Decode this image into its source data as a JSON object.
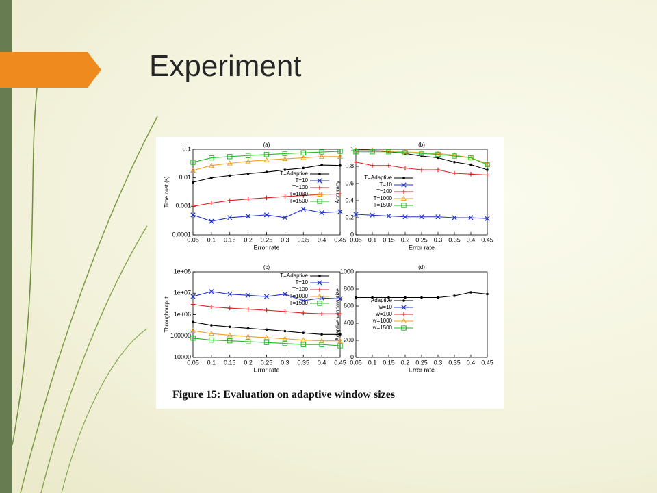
{
  "title": "Experiment",
  "caption": "Figure 15: Evaluation on adaptive window sizes",
  "chart_data": [
    {
      "type": "line",
      "title": "(a)",
      "x_label": "Error rate",
      "y_label": "Time cost (s)",
      "log_y": true,
      "legend": "right",
      "x": [
        0.05,
        0.1,
        0.15,
        0.2,
        0.25,
        0.3,
        0.35,
        0.4,
        0.45
      ],
      "xlim": [
        0.05,
        0.45
      ],
      "xticks": [
        0.05,
        0.1,
        0.15,
        0.2,
        0.25,
        0.3,
        0.35,
        0.4,
        0.45
      ],
      "ylim": [
        0.0001,
        0.1
      ],
      "yticks": [
        0.0001,
        0.001,
        0.01,
        0.1
      ],
      "series": [
        {
          "name": "T=Adaptive",
          "color": "#000000",
          "marker": "dot",
          "values": [
            0.007,
            0.01,
            0.012,
            0.014,
            0.016,
            0.019,
            0.022,
            0.028,
            0.027
          ]
        },
        {
          "name": "T=10",
          "color": "#2233cc",
          "marker": "x",
          "values": [
            0.0005,
            0.0003,
            0.0004,
            0.00045,
            0.0005,
            0.0004,
            0.0008,
            0.0006,
            0.00065
          ]
        },
        {
          "name": "T=100",
          "color": "#e02020",
          "marker": "plus",
          "values": [
            0.001,
            0.0013,
            0.0016,
            0.0018,
            0.002,
            0.0022,
            0.0024,
            0.0026,
            0.0027
          ]
        },
        {
          "name": "T=1000",
          "color": "#f0a020",
          "marker": "triangle",
          "values": [
            0.018,
            0.027,
            0.032,
            0.038,
            0.042,
            0.046,
            0.05,
            0.055,
            0.055
          ]
        },
        {
          "name": "T=1500",
          "color": "#22bb22",
          "marker": "square",
          "values": [
            0.035,
            0.05,
            0.055,
            0.06,
            0.065,
            0.07,
            0.075,
            0.08,
            0.085
          ]
        }
      ]
    },
    {
      "type": "line",
      "title": "(b)",
      "x_label": "Error rate",
      "y_label": "Accuracy",
      "log_y": false,
      "legend": "left",
      "x": [
        0.05,
        0.1,
        0.15,
        0.2,
        0.25,
        0.3,
        0.35,
        0.4,
        0.45
      ],
      "xlim": [
        0.05,
        0.45
      ],
      "xticks": [
        0.05,
        0.1,
        0.15,
        0.2,
        0.25,
        0.3,
        0.35,
        0.4,
        0.45
      ],
      "ylim": [
        0,
        1
      ],
      "yticks": [
        0,
        0.2,
        0.4,
        0.6,
        0.8,
        1
      ],
      "series": [
        {
          "name": "T=Adaptive",
          "color": "#000000",
          "marker": "dot",
          "values": [
            1,
            0.99,
            0.97,
            0.95,
            0.92,
            0.9,
            0.85,
            0.82,
            0.76
          ]
        },
        {
          "name": "T=10",
          "color": "#2233cc",
          "marker": "x",
          "values": [
            0.24,
            0.23,
            0.22,
            0.21,
            0.21,
            0.21,
            0.2,
            0.2,
            0.19
          ]
        },
        {
          "name": "T=100",
          "color": "#e02020",
          "marker": "plus",
          "values": [
            0.85,
            0.81,
            0.81,
            0.78,
            0.76,
            0.76,
            0.72,
            0.71,
            0.7
          ]
        },
        {
          "name": "T=1000",
          "color": "#f0a020",
          "marker": "triangle",
          "values": [
            0.99,
            0.99,
            0.98,
            0.97,
            0.96,
            0.95,
            0.93,
            0.9,
            0.83
          ]
        },
        {
          "name": "T=1500",
          "color": "#22bb22",
          "marker": "square",
          "values": [
            0.97,
            0.97,
            0.97,
            0.96,
            0.95,
            0.94,
            0.92,
            0.9,
            0.82
          ]
        }
      ]
    },
    {
      "type": "line",
      "title": "(c)",
      "x_label": "Error rate",
      "y_label": "Throughoutput",
      "log_y": true,
      "legend": "top-right",
      "x": [
        0.05,
        0.1,
        0.15,
        0.2,
        0.25,
        0.3,
        0.35,
        0.4,
        0.45
      ],
      "xlim": [
        0.05,
        0.45
      ],
      "xticks": [
        0.05,
        0.1,
        0.15,
        0.2,
        0.25,
        0.3,
        0.35,
        0.4,
        0.45
      ],
      "ylim": [
        10000,
        100000000
      ],
      "yticks": [
        10000,
        100000,
        {
          "value": 1000000,
          "label": "1e+06"
        },
        {
          "value": 10000000,
          "label": "1e+07"
        },
        {
          "value": 100000000,
          "label": "1e+08"
        }
      ],
      "series": [
        {
          "name": "T=Adaptive",
          "color": "#000000",
          "marker": "dot",
          "values": [
            450000,
            320000,
            270000,
            230000,
            200000,
            170000,
            140000,
            120000,
            120000
          ]
        },
        {
          "name": "T=10",
          "color": "#2233cc",
          "marker": "x",
          "values": [
            7000000,
            12000000,
            9000000,
            8000000,
            7000000,
            9000000,
            4500000,
            6000000,
            5500000
          ]
        },
        {
          "name": "T=100",
          "color": "#e02020",
          "marker": "plus",
          "values": [
            3000000,
            2300000,
            2000000,
            1800000,
            1600000,
            1400000,
            1200000,
            1100000,
            1100000
          ]
        },
        {
          "name": "T=1000",
          "color": "#f0a020",
          "marker": "triangle",
          "values": [
            180000,
            130000,
            110000,
            95000,
            85000,
            75000,
            65000,
            60000,
            60000
          ]
        },
        {
          "name": "T=1500",
          "color": "#22bb22",
          "marker": "square",
          "values": [
            80000,
            65000,
            60000,
            55000,
            50000,
            45000,
            40000,
            40000,
            35000
          ]
        }
      ]
    },
    {
      "type": "line",
      "title": "(d)",
      "x_label": "Error rate",
      "y_label": "Adaptive window size",
      "log_y": false,
      "legend": "left",
      "x": [
        0.05,
        0.1,
        0.15,
        0.2,
        0.25,
        0.3,
        0.35,
        0.4,
        0.45
      ],
      "xlim": [
        0.05,
        0.45
      ],
      "xticks": [
        0.05,
        0.1,
        0.15,
        0.2,
        0.25,
        0.3,
        0.35,
        0.4,
        0.45
      ],
      "ylim": [
        0,
        1000
      ],
      "yticks": [
        0,
        200,
        400,
        600,
        800,
        1000
      ],
      "series": [
        {
          "name": "Adaptive",
          "color": "#000000",
          "marker": "dot",
          "values": [
            700,
            700,
            700,
            700,
            700,
            700,
            720,
            760,
            740
          ]
        },
        {
          "name": "w=10",
          "color": "#2233cc",
          "marker": "x",
          "values": [
            null,
            null,
            null,
            null,
            null,
            null,
            null,
            null,
            null
          ]
        },
        {
          "name": "w=100",
          "color": "#e02020",
          "marker": "plus",
          "values": [
            null,
            null,
            null,
            null,
            null,
            null,
            null,
            null,
            null
          ]
        },
        {
          "name": "w=1000",
          "color": "#f0a020",
          "marker": "triangle",
          "values": [
            null,
            null,
            null,
            null,
            null,
            null,
            null,
            null,
            null
          ]
        },
        {
          "name": "w=1500",
          "color": "#22bb22",
          "marker": "square",
          "values": [
            null,
            null,
            null,
            null,
            null,
            null,
            null,
            null,
            null
          ]
        }
      ]
    }
  ]
}
